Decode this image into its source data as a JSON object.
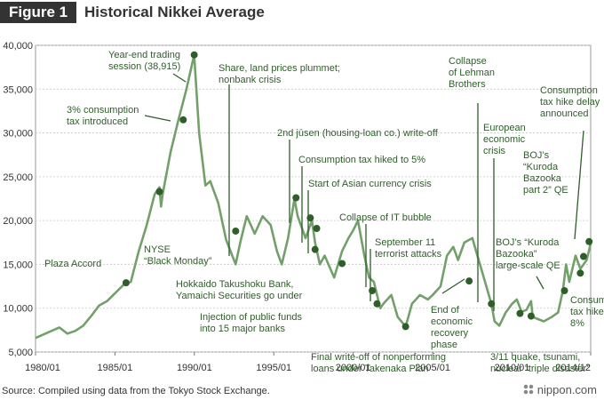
{
  "figure_label": "Figure 1",
  "figure_title": "Historical Nikkei Average",
  "source": "Source: Compiled using data from the Tokyo Stock Exchange.",
  "brand": "nippon.com",
  "colors": {
    "line": "#73a06a",
    "marker": "#2f5e2a",
    "annotation": "#2f5e2a",
    "header": "#333333"
  },
  "chart_data": {
    "type": "line",
    "title": "Historical Nikkei Average",
    "xlabel": "",
    "ylabel": "",
    "xlim": [
      1980.0,
      2014.95
    ],
    "ylim": [
      5000,
      40000
    ],
    "grid": true,
    "x_ticks": [
      {
        "value": 1980.0,
        "label": "1980/01"
      },
      {
        "value": 1985.0,
        "label": "1985/01"
      },
      {
        "value": 1990.0,
        "label": "1990/01"
      },
      {
        "value": 1995.0,
        "label": "1995/01"
      },
      {
        "value": 2000.0,
        "label": "2000/01"
      },
      {
        "value": 2005.0,
        "label": "2005/01"
      },
      {
        "value": 2010.0,
        "label": "2010/01"
      },
      {
        "value": 2014.95,
        "label": "2014/12"
      }
    ],
    "y_ticks": [
      {
        "value": 5000,
        "label": "5,000"
      },
      {
        "value": 10000,
        "label": "10,000"
      },
      {
        "value": 15000,
        "label": "15,000"
      },
      {
        "value": 20000,
        "label": "20,000"
      },
      {
        "value": 25000,
        "label": "25,000"
      },
      {
        "value": 30000,
        "label": "30,000"
      },
      {
        "value": 35000,
        "label": "35,000"
      },
      {
        "value": 40000,
        "label": "40,000"
      }
    ],
    "series": [
      {
        "x": [
          1980.0,
          1980.5,
          1981.0,
          1981.5,
          1982.0,
          1982.5,
          1983.0,
          1983.5,
          1984.0,
          1984.5,
          1985.0,
          1985.5,
          1985.7,
          1986.0,
          1986.5,
          1987.0,
          1987.5,
          1987.8,
          1987.9,
          1988.0,
          1988.5,
          1989.0,
          1989.5,
          1989.99,
          1990.3,
          1990.7,
          1991.0,
          1991.5,
          1992.0,
          1992.6,
          1992.9,
          1993.3,
          1993.8,
          1994.3,
          1994.8,
          1995.2,
          1995.5,
          1995.9,
          1996.3,
          1996.5,
          1997.0,
          1997.4,
          1997.6,
          1997.9,
          1998.2,
          1998.8,
          1999.3,
          1999.7,
          2000.0,
          2000.3,
          2000.7,
          2001.0,
          2001.3,
          2001.7,
          2001.9,
          2002.4,
          2002.8,
          2003.3,
          2003.7,
          2004.2,
          2004.7,
          2005.0,
          2005.5,
          2005.9,
          2006.3,
          2006.6,
          2007.0,
          2007.5,
          2007.9,
          2008.3,
          2008.7,
          2008.9,
          2009.2,
          2009.6,
          2010.0,
          2010.3,
          2010.6,
          2010.9,
          2011.2,
          2011.3,
          2011.7,
          2012.0,
          2012.5,
          2012.9,
          2013.2,
          2013.4,
          2013.6,
          2014.0,
          2014.3,
          2014.7,
          2014.95
        ],
        "y": [
          6600,
          7000,
          7400,
          7800,
          7100,
          7400,
          8000,
          9100,
          10300,
          10800,
          11700,
          12600,
          12900,
          13000,
          16500,
          19500,
          23000,
          23800,
          21600,
          23000,
          27800,
          31500,
          35000,
          38915,
          30000,
          24000,
          24500,
          22000,
          17800,
          15000,
          17600,
          20500,
          18500,
          20500,
          19500,
          16500,
          15000,
          18000,
          22500,
          20500,
          18000,
          20000,
          17500,
          15000,
          16000,
          13500,
          16500,
          18000,
          18900,
          20000,
          16000,
          13500,
          13000,
          10000,
          10500,
          11500,
          9000,
          7900,
          10500,
          11500,
          11000,
          11500,
          12500,
          16000,
          17000,
          15500,
          17500,
          18000,
          15500,
          13000,
          10500,
          8500,
          8000,
          9500,
          10500,
          11000,
          9600,
          9800,
          10800,
          9000,
          8700,
          8500,
          9000,
          9500,
          12000,
          15000,
          13000,
          16000,
          14500,
          15500,
          17400
        ]
      }
    ],
    "annotations": [
      {
        "x": 1985.7,
        "y": 12900,
        "text": [
          "Plaza Accord"
        ]
      },
      {
        "x": 1987.8,
        "y": 23300,
        "text": [
          "NYSE",
          "“Black Monday”"
        ]
      },
      {
        "x": 1989.3,
        "y": 31500,
        "text": [
          "3% consumption",
          "tax introduced"
        ]
      },
      {
        "x": 1989.99,
        "y": 38915,
        "text": [
          "Year-end trading",
          "session (38,915)"
        ]
      },
      {
        "x": 1992.6,
        "y": 18800,
        "text": [
          "Share, land prices plummet;",
          "nonbank crisis"
        ]
      },
      {
        "x": 1996.4,
        "y": 22600,
        "text": [
          "2nd jūsen (housing-loan co.) write-off"
        ]
      },
      {
        "x": 1997.3,
        "y": 20300,
        "text": [
          "Consumption tax hiked to 5%"
        ]
      },
      {
        "x": 1997.7,
        "y": 19100,
        "text": [
          "Start of Asian currency crisis"
        ]
      },
      {
        "x": 1997.6,
        "y": 16700,
        "text": [
          "Hokkaido Takushoku Bank,",
          "Yamaichi Securities go under"
        ]
      },
      {
        "x": 1999.3,
        "y": 15100,
        "text": [
          "Injection of public funds",
          "into 15 major banks"
        ]
      },
      {
        "x": 2001.2,
        "y": 12000,
        "text": [
          "Collapse of IT bubble"
        ]
      },
      {
        "x": 2001.5,
        "y": 10500,
        "text": [
          "September 11",
          "terrorist attacks"
        ]
      },
      {
        "x": 2003.3,
        "y": 7900,
        "text": [
          "Final write-off of nonperforming",
          "loans under Takenaka Plan"
        ]
      },
      {
        "x": 2007.3,
        "y": 13100,
        "text": [
          "End of",
          "economic",
          "recovery",
          "phase"
        ]
      },
      {
        "x": 2008.7,
        "y": 10500,
        "text": [
          "Collapse",
          "of Lehman",
          "Brothers"
        ]
      },
      {
        "x": 2010.5,
        "y": 9400,
        "text": [
          "European",
          "economic",
          "crisis"
        ]
      },
      {
        "x": 2011.2,
        "y": 9100,
        "text": [
          "3/11 quake, tsunami,",
          "nuclear “triple disaster”"
        ]
      },
      {
        "x": 2013.3,
        "y": 12000,
        "text": [
          "BOJ’s “Kuroda",
          "Bazooka”",
          "large-scale QE"
        ]
      },
      {
        "x": 2014.3,
        "y": 14000,
        "text": [
          "Consumption",
          "tax hiked to",
          "8%"
        ]
      },
      {
        "x": 2014.5,
        "y": 15900,
        "text": [
          "BOJ’s",
          "“Kuroda",
          "Bazooka",
          "part 2” QE"
        ]
      },
      {
        "x": 2014.85,
        "y": 17600,
        "text": [
          "Consumption",
          "tax hike delay",
          "announced"
        ]
      }
    ]
  }
}
